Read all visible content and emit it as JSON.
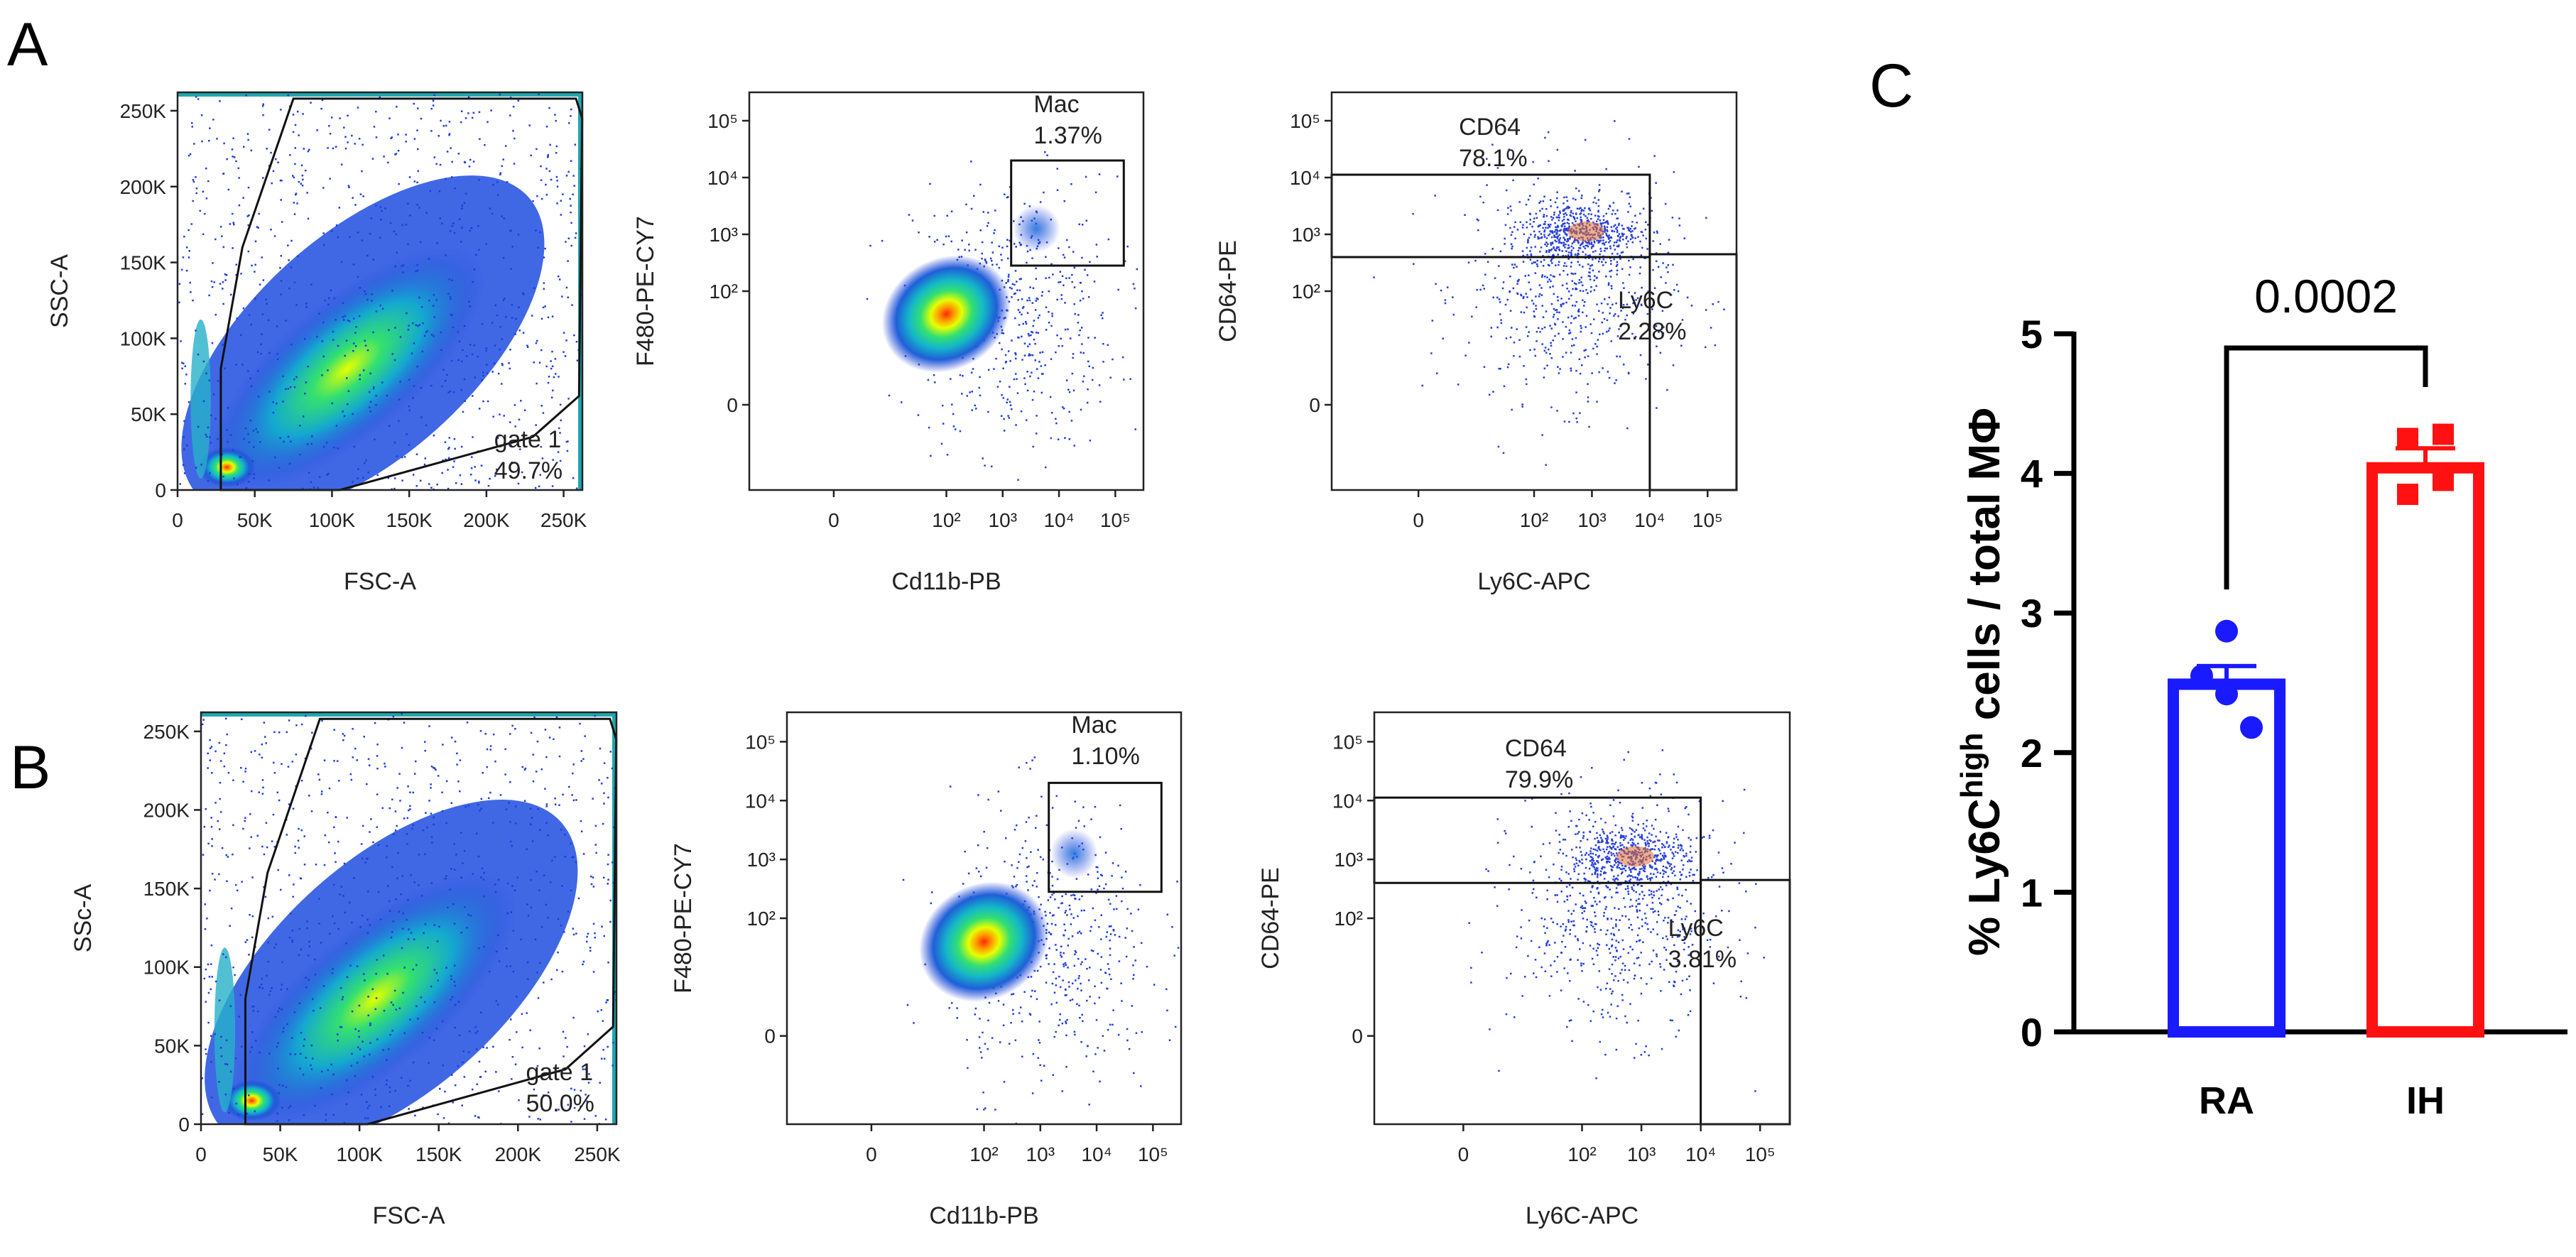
{
  "panel_letters": {
    "a": "A",
    "b": "B",
    "c": "C"
  },
  "colors": {
    "ra": "#1a1aff",
    "ih": "#ff1111",
    "gate": "#111111"
  },
  "chart_data": [
    {
      "id": "A1",
      "type": "scatter",
      "subtype": "flow-density",
      "xlabel": "FSC-A",
      "ylabel": "SSC-A",
      "xlim": [
        0,
        262144
      ],
      "ylim": [
        0,
        262144
      ],
      "x_ticks": [
        {
          "v": 0,
          "t": "0"
        },
        {
          "v": 50000,
          "t": "50K"
        },
        {
          "v": 100000,
          "t": "100K"
        },
        {
          "v": 150000,
          "t": "150K"
        },
        {
          "v": 200000,
          "t": "200K"
        },
        {
          "v": 250000,
          "t": "250K"
        }
      ],
      "y_ticks": [
        {
          "v": 0,
          "t": "0"
        },
        {
          "v": 50000,
          "t": "50K"
        },
        {
          "v": 100000,
          "t": "100K"
        },
        {
          "v": 150000,
          "t": "150K"
        },
        {
          "v": 200000,
          "t": "200K"
        },
        {
          "v": 250000,
          "t": "250K"
        }
      ],
      "gates": [
        {
          "name": "gate 1",
          "value": "49.7%",
          "vertices": [
            [
              28000,
              0
            ],
            [
              28000,
              80000
            ],
            [
              42000,
              160000
            ],
            [
              75000,
              258000
            ],
            [
              258000,
              258000
            ],
            [
              262000,
              245000
            ],
            [
              260000,
              62000
            ],
            [
              230000,
              35000
            ],
            [
              105000,
              0
            ]
          ]
        }
      ]
    },
    {
      "id": "A2",
      "type": "scatter",
      "subtype": "flow-density",
      "xlabel": "Cd11b-PB",
      "ylabel": "F480-PE-CY7",
      "xlim": [
        -1.5,
        5.5
      ],
      "ylim": [
        -1.5,
        5.5
      ],
      "x_ticks": [
        {
          "v": 0,
          "t": "0"
        },
        {
          "v": 2,
          "t": "10²"
        },
        {
          "v": 3,
          "t": "10³"
        },
        {
          "v": 4,
          "t": "10⁴"
        },
        {
          "v": 5,
          "t": "10⁵"
        }
      ],
      "y_ticks": [
        {
          "v": 0,
          "t": "0"
        },
        {
          "v": 2,
          "t": "10²"
        },
        {
          "v": 3,
          "t": "10³"
        },
        {
          "v": 4,
          "t": "10⁴"
        },
        {
          "v": 5,
          "t": "10⁵"
        }
      ],
      "gates": [
        {
          "name": "Mac",
          "value": "1.37%",
          "vertices": [
            [
              3.15,
              2.45
            ],
            [
              5.15,
              2.45
            ],
            [
              5.15,
              4.3
            ],
            [
              3.15,
              4.3
            ]
          ]
        }
      ]
    },
    {
      "id": "A3",
      "type": "scatter",
      "subtype": "flow-density",
      "xlabel": "Ly6C-APC",
      "ylabel": "CD64-PE",
      "xlim": [
        -1.5,
        5.5
      ],
      "ylim": [
        -1.5,
        5.5
      ],
      "x_ticks": [
        {
          "v": 0,
          "t": "0"
        },
        {
          "v": 2,
          "t": "10²"
        },
        {
          "v": 3,
          "t": "10³"
        },
        {
          "v": 4,
          "t": "10⁴"
        },
        {
          "v": 5,
          "t": "10⁵"
        }
      ],
      "y_ticks": [
        {
          "v": 0,
          "t": "0"
        },
        {
          "v": 2,
          "t": "10²"
        },
        {
          "v": 3,
          "t": "10³"
        },
        {
          "v": 4,
          "t": "10⁴"
        },
        {
          "v": 5,
          "t": "10⁵"
        }
      ],
      "gates": [
        {
          "name": "CD64",
          "value": "78.1%",
          "vertices": [
            [
              -1.5,
              2.6
            ],
            [
              4.0,
              2.6
            ],
            [
              4.0,
              4.05
            ],
            [
              -1.5,
              4.05
            ]
          ]
        },
        {
          "name": "Ly6C",
          "value": "2.28%",
          "vertices": [
            [
              4.0,
              -1.5
            ],
            [
              5.5,
              -1.5
            ],
            [
              5.5,
              2.65
            ],
            [
              4.0,
              2.65
            ]
          ]
        }
      ]
    },
    {
      "id": "B1",
      "type": "scatter",
      "subtype": "flow-density",
      "xlabel": "FSC-A",
      "ylabel": "SSc-A",
      "xlim": [
        0,
        262144
      ],
      "ylim": [
        0,
        262144
      ],
      "x_ticks": [
        {
          "v": 0,
          "t": "0"
        },
        {
          "v": 50000,
          "t": "50K"
        },
        {
          "v": 100000,
          "t": "100K"
        },
        {
          "v": 150000,
          "t": "150K"
        },
        {
          "v": 200000,
          "t": "200K"
        },
        {
          "v": 250000,
          "t": "250K"
        }
      ],
      "y_ticks": [
        {
          "v": 0,
          "t": "0"
        },
        {
          "v": 50000,
          "t": "50K"
        },
        {
          "v": 100000,
          "t": "100K"
        },
        {
          "v": 150000,
          "t": "150K"
        },
        {
          "v": 200000,
          "t": "200K"
        },
        {
          "v": 250000,
          "t": "250K"
        }
      ],
      "gates": [
        {
          "name": "gate 1",
          "value": "50.0%",
          "vertices": [
            [
              28000,
              0
            ],
            [
              28000,
              80000
            ],
            [
              42000,
              160000
            ],
            [
              75000,
              258000
            ],
            [
              258000,
              258000
            ],
            [
              262000,
              245000
            ],
            [
              260000,
              62000
            ],
            [
              230000,
              35000
            ],
            [
              105000,
              0
            ]
          ]
        }
      ]
    },
    {
      "id": "B2",
      "type": "scatter",
      "subtype": "flow-density",
      "xlabel": "Cd11b-PB",
      "ylabel": "F480-PE-CY7",
      "xlim": [
        -1.5,
        5.5
      ],
      "ylim": [
        -1.5,
        5.5
      ],
      "x_ticks": [
        {
          "v": 0,
          "t": "0"
        },
        {
          "v": 2,
          "t": "10²"
        },
        {
          "v": 3,
          "t": "10³"
        },
        {
          "v": 4,
          "t": "10⁴"
        },
        {
          "v": 5,
          "t": "10⁵"
        }
      ],
      "y_ticks": [
        {
          "v": 0,
          "t": "0"
        },
        {
          "v": 2,
          "t": "10²"
        },
        {
          "v": 3,
          "t": "10³"
        },
        {
          "v": 4,
          "t": "10⁴"
        },
        {
          "v": 5,
          "t": "10⁵"
        }
      ],
      "gates": [
        {
          "name": "Mac",
          "value": "1.10%",
          "vertices": [
            [
              3.15,
              2.45
            ],
            [
              5.15,
              2.45
            ],
            [
              5.15,
              4.3
            ],
            [
              3.15,
              4.3
            ]
          ]
        }
      ]
    },
    {
      "id": "B3",
      "type": "scatter",
      "subtype": "flow-density",
      "xlabel": "Ly6C-APC",
      "ylabel": "CD64-PE",
      "xlim": [
        -1.5,
        5.5
      ],
      "ylim": [
        -1.5,
        5.5
      ],
      "x_ticks": [
        {
          "v": 0,
          "t": "0"
        },
        {
          "v": 2,
          "t": "10²"
        },
        {
          "v": 3,
          "t": "10³"
        },
        {
          "v": 4,
          "t": "10⁴"
        },
        {
          "v": 5,
          "t": "10⁵"
        }
      ],
      "y_ticks": [
        {
          "v": 0,
          "t": "0"
        },
        {
          "v": 2,
          "t": "10²"
        },
        {
          "v": 3,
          "t": "10³"
        },
        {
          "v": 4,
          "t": "10⁴"
        },
        {
          "v": 5,
          "t": "10⁵"
        }
      ],
      "gates": [
        {
          "name": "CD64",
          "value": "79.9%",
          "vertices": [
            [
              -1.5,
              2.6
            ],
            [
              4.0,
              2.6
            ],
            [
              4.0,
              4.05
            ],
            [
              -1.5,
              4.05
            ]
          ]
        },
        {
          "name": "Ly6C",
          "value": "3.81%",
          "vertices": [
            [
              4.0,
              -1.5
            ],
            [
              5.5,
              -1.5
            ],
            [
              5.5,
              2.65
            ],
            [
              4.0,
              2.65
            ]
          ]
        }
      ]
    },
    {
      "id": "C",
      "type": "bar",
      "categories": [
        "RA",
        "IH"
      ],
      "values": [
        2.49,
        4.04
      ],
      "sem": [
        0.13,
        0.14
      ],
      "points": [
        [
          2.87,
          2.55,
          2.42,
          2.18
        ],
        [
          4.28,
          4.25,
          3.95,
          3.85
        ]
      ],
      "colors": [
        "#1a1aff",
        "#ff1111"
      ],
      "ylim": [
        0,
        5
      ],
      "y_ticks": [
        "0",
        "1",
        "2",
        "3",
        "4",
        "5"
      ],
      "ylabel_prefix": "% Ly6C",
      "ylabel_sup": "high",
      "ylabel_suffix": " cells / total MΦ",
      "significance": {
        "label": "0.0002",
        "between": [
          "RA",
          "IH"
        ]
      }
    }
  ]
}
